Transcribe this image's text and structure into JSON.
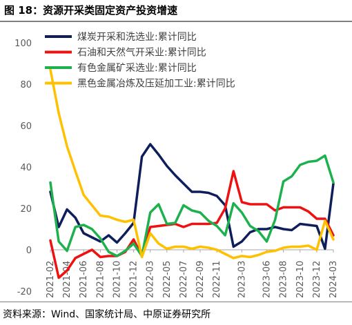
{
  "figure": {
    "title": "图 18：资源开采类固定资产投资增速",
    "source": "资料来源：Wind、国家统计局、中原证券研究所"
  },
  "chart_data": {
    "type": "line",
    "ylim": [
      -20,
      100
    ],
    "yticks": [
      -20,
      0,
      20,
      40,
      60,
      80,
      100
    ],
    "xtick_labels": [
      "2021-02",
      "2021-04",
      "2021-06",
      "2021-08",
      "2021-10",
      "2021-12",
      "2022-03",
      "2022-05",
      "2022-07",
      "2022-09",
      "2022-11",
      "2023-01",
      "2023-03",
      "2023-06",
      "2023-08",
      "2023-10",
      "2023-12",
      "2024-03"
    ],
    "grid": false,
    "legend_position": "top-left",
    "x": [
      "2021-02",
      "2021-03",
      "2021-04",
      "2021-05",
      "2021-06",
      "2021-07",
      "2021-08",
      "2021-09",
      "2021-10",
      "2021-11",
      "2021-12",
      "2022-02",
      "2022-03",
      "2022-04",
      "2022-05",
      "2022-06",
      "2022-07",
      "2022-08",
      "2022-09",
      "2022-10",
      "2022-11",
      "2022-12",
      "2023-02",
      "2023-03",
      "2023-04",
      "2023-05",
      "2023-06",
      "2023-07",
      "2023-08",
      "2023-09",
      "2023-10",
      "2023-11",
      "2023-12",
      "2024-02",
      "2024-03"
    ],
    "series": [
      {
        "name": "煤炭开采和洗选业:累计同比",
        "color": "#0e1e5b",
        "values": [
          28,
          11,
          19.5,
          15.5,
          8,
          6,
          4,
          7,
          3.5,
          8,
          13,
          45,
          51,
          46,
          40.5,
          36,
          32,
          28,
          28,
          27.5,
          26,
          21.5,
          1.5,
          4,
          8.5,
          10,
          10,
          11,
          10,
          9.5,
          12.5,
          12,
          11.5,
          0.5,
          32
        ]
      },
      {
        "name": "石油和天然气开采业:累计同比",
        "color": "#ee1111",
        "values": [
          4.5,
          -13.5,
          -10,
          -4,
          -2,
          0,
          -3.5,
          -3,
          -3,
          -1,
          5,
          -3,
          11,
          11.5,
          12,
          12.5,
          11,
          12.5,
          12.5,
          12.5,
          13,
          20,
          38,
          23,
          22,
          22,
          22,
          19,
          20.5,
          20.5,
          20.5,
          18.5,
          15,
          15,
          7
        ]
      },
      {
        "name": "有色金属矿采选业:累计同比",
        "color": "#1db14e",
        "values": [
          32.5,
          4,
          -0.5,
          11,
          12,
          10,
          5.5,
          -1,
          -3,
          -0.5,
          3,
          -3,
          18,
          22,
          12.5,
          13,
          21.5,
          19,
          18,
          14,
          11.5,
          7,
          22.5,
          18,
          11.5,
          9,
          4,
          14.5,
          33,
          35.5,
          41,
          42.5,
          43,
          45.5,
          32.5
        ]
      },
      {
        "name": "黑色金属冶炼及压延加工业:累计同比",
        "color": "#ffc000",
        "values": [
          87,
          66,
          50,
          38,
          26.5,
          21.5,
          16.5,
          16,
          14.5,
          13.5,
          14.5,
          -3.5,
          8,
          3,
          0.5,
          1.5,
          1.5,
          0.5,
          1.5,
          1,
          0,
          -2,
          -4,
          -3,
          -3.5,
          -2.5,
          -1,
          -0.5,
          1,
          1.5,
          1.5,
          2,
          0,
          14,
          5
        ]
      }
    ]
  }
}
